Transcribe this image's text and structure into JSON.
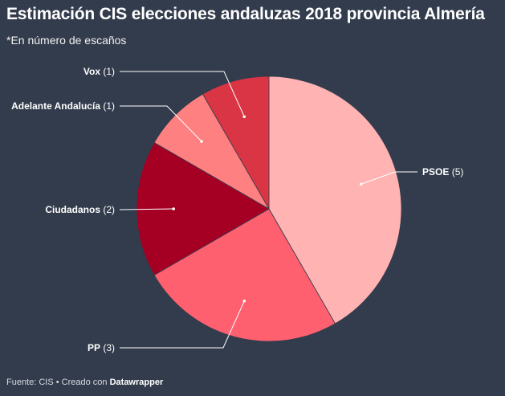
{
  "title": "Estimación CIS elecciones andaluzas 2018 provincia Almería",
  "subtitle": "*En número de escaños",
  "footer": {
    "source_text": "Fuente: CIS • Creado con",
    "brand": "Datawrapper"
  },
  "chart_data": {
    "type": "pie",
    "title": "Estimación CIS elecciones andaluzas 2018 provincia Almería",
    "subtitle": "*En número de escaños",
    "slices": [
      {
        "label": "PSOE",
        "value": 5,
        "display": "(5)",
        "color": "#ffb3b3"
      },
      {
        "label": "PP",
        "value": 3,
        "display": "(3)",
        "color": "#ff6070"
      },
      {
        "label": "Ciudadanos",
        "value": 2,
        "display": "(2)",
        "color": "#a50023"
      },
      {
        "label": "Adelante Andalucía",
        "value": 1,
        "display": "(1)",
        "color": "#ff8080"
      },
      {
        "label": "Vox",
        "value": 1,
        "display": "(1)",
        "color": "#d93545"
      }
    ]
  }
}
